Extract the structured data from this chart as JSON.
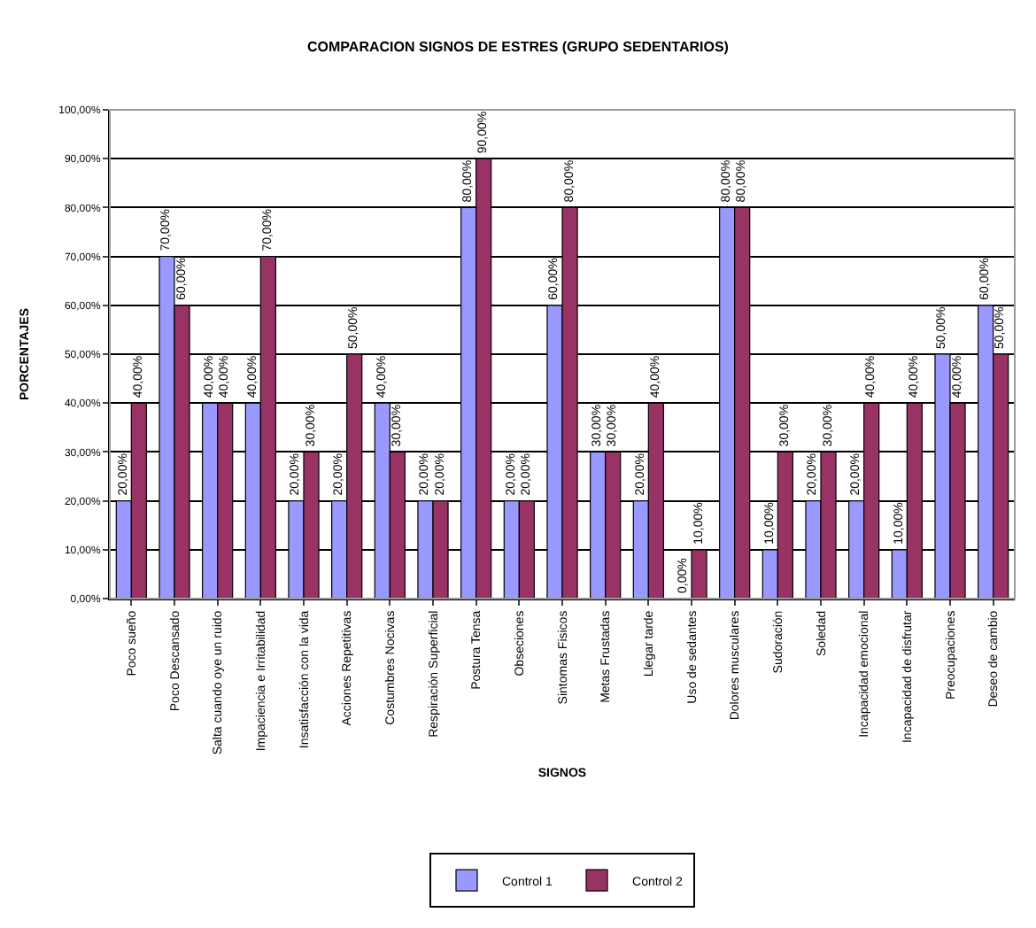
{
  "chart_data": {
    "type": "bar",
    "title": "COMPARACION SIGNOS DE ESTRES (GRUPO SEDENTARIOS)",
    "xlabel": "SIGNOS",
    "ylabel": "PORCENTAJES",
    "categories": [
      "Poco sueño",
      "Poco Descansado",
      "Salta cuando oye un ruido",
      "Impaciencia e Irritabilidad",
      "Insatisfacción con la vida",
      "Acciones Repetitivas",
      "Costumbres Nocivas",
      "Respiración Superficial",
      "Postura Tensa",
      "Obseciones",
      "Sintomas Fisicos",
      "Metas Frustadas",
      "Llegar tarde",
      "Uso de sedantes",
      "Dolores musculares",
      "Sudoración",
      "Soledad",
      "Incapacidad emocional",
      "Incapacidad de disfrutar",
      "Preocupaciones",
      "Deseo de cambio"
    ],
    "series": [
      {
        "name": "Control 1",
        "color": "#9999ff",
        "values": [
          20,
          70,
          40,
          40,
          20,
          20,
          40,
          20,
          80,
          20,
          60,
          30,
          20,
          0,
          80,
          10,
          20,
          20,
          10,
          50,
          60
        ],
        "value_labels": [
          "20,00%",
          "70,00%",
          "40,00%",
          "40,00%",
          "20,00%",
          "20,00%",
          "40,00%",
          "20,00%",
          "80,00%",
          "20,00%",
          "60,00%",
          "30,00%",
          "20,00%",
          "0,00%",
          "80,00%",
          "10,00%",
          "20,00%",
          "20,00%",
          "10,00%",
          "50,00%",
          "60,00%"
        ]
      },
      {
        "name": "Control 2",
        "color": "#993366",
        "values": [
          40,
          60,
          40,
          70,
          30,
          50,
          30,
          20,
          90,
          20,
          80,
          30,
          40,
          10,
          80,
          30,
          30,
          40,
          40,
          40,
          50
        ],
        "value_labels": [
          "40,00%",
          "60,00%",
          "40,00%",
          "70,00%",
          "30,00%",
          "50,00%",
          "30,00%",
          "20,00%",
          "90,00%",
          "20,00%",
          "80,00%",
          "30,00%",
          "40,00%",
          "10,00%",
          "80,00%",
          "30,00%",
          "30,00%",
          "40,00%",
          "40,00%",
          "40,00%",
          "50,00%"
        ]
      }
    ],
    "ylim": [
      0,
      100
    ],
    "yticks": [
      {
        "value": 0,
        "label": "0,00%"
      },
      {
        "value": 10,
        "label": "10,00%"
      },
      {
        "value": 20,
        "label": "20,00%"
      },
      {
        "value": 30,
        "label": "30,00%"
      },
      {
        "value": 40,
        "label": "40,00%"
      },
      {
        "value": 50,
        "label": "50,00%"
      },
      {
        "value": 60,
        "label": "60,00%"
      },
      {
        "value": 70,
        "label": "70,00%"
      },
      {
        "value": 80,
        "label": "80,00%"
      },
      {
        "value": 90,
        "label": "90,00%"
      },
      {
        "value": 100,
        "label": "100,00%"
      }
    ],
    "grid": "y",
    "legend": "bottom"
  }
}
